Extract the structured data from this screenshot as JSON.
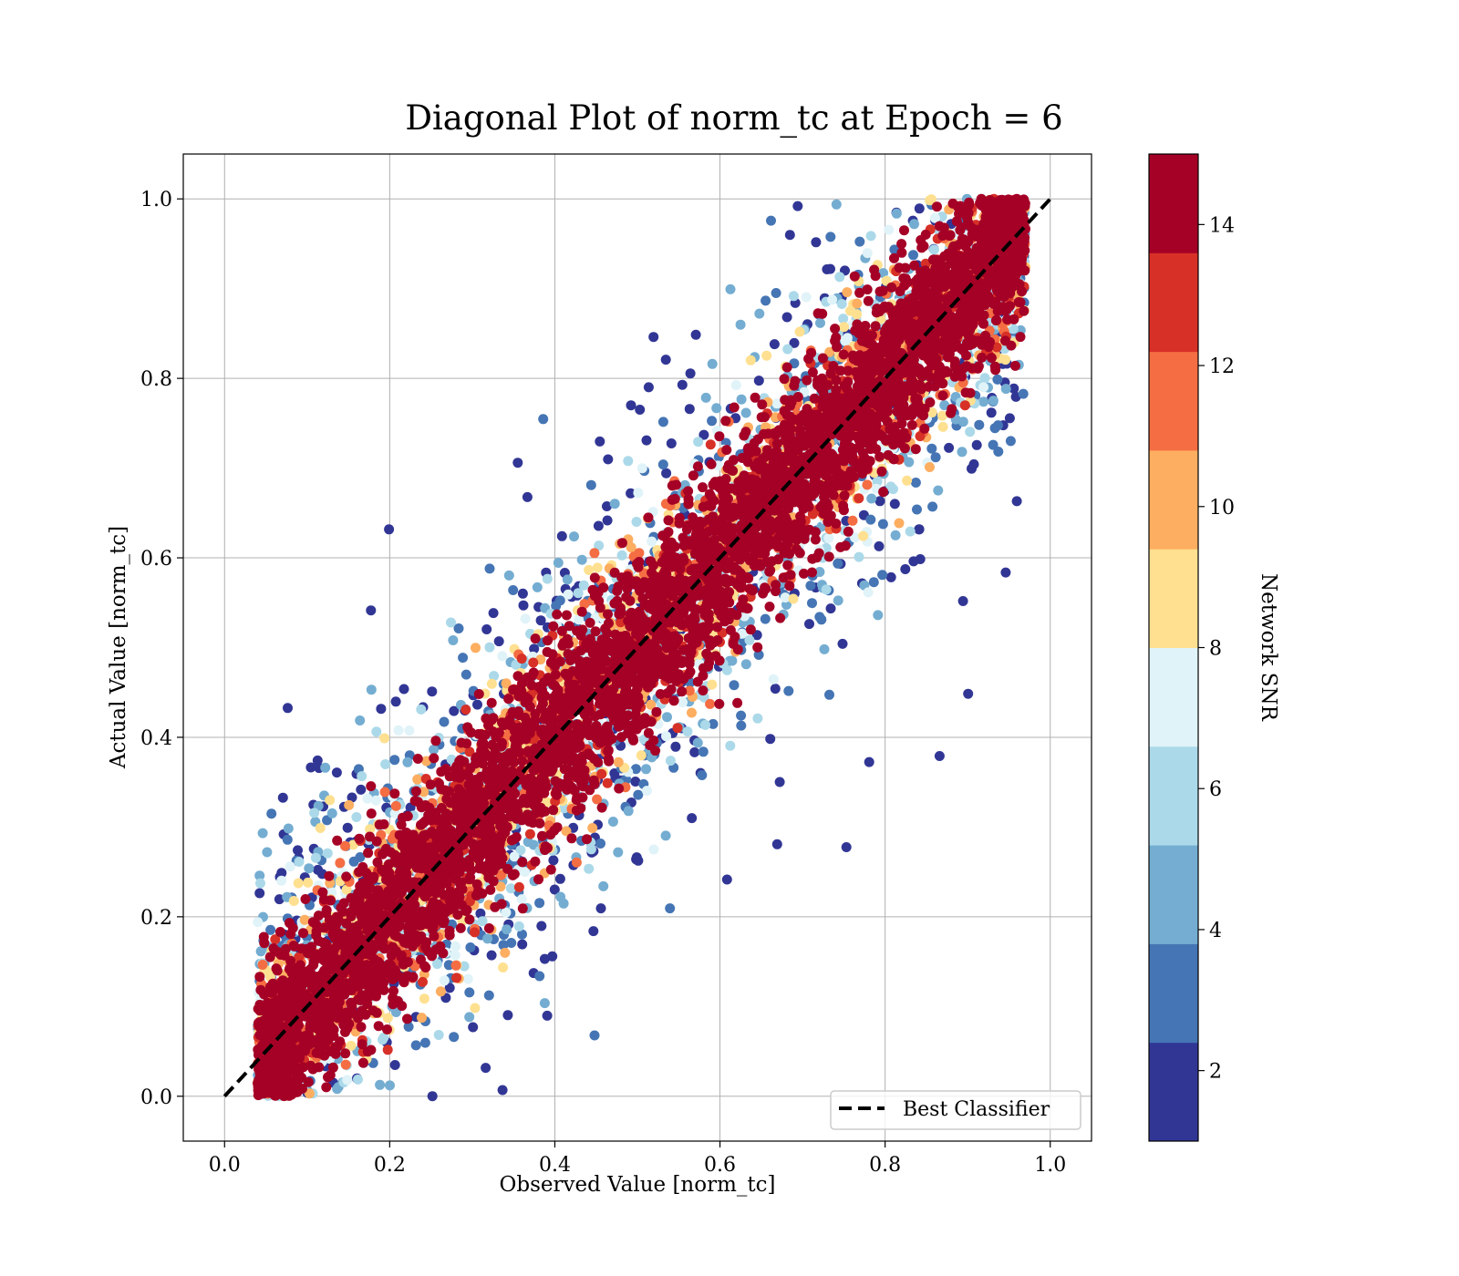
{
  "chart_data": {
    "type": "scatter",
    "title": "Diagonal Plot of norm_tc at Epoch = 6",
    "xlabel": "Observed Value [norm_tc]",
    "ylabel": "Actual Value [norm_tc]",
    "xlim": [
      -0.05,
      1.05
    ],
    "ylim": [
      -0.05,
      1.05
    ],
    "xticks": [
      "0.0",
      "0.2",
      "0.4",
      "0.6",
      "0.8",
      "1.0"
    ],
    "yticks": [
      "0.0",
      "0.2",
      "0.4",
      "0.6",
      "0.8",
      "1.0"
    ],
    "grid": true,
    "reference_line": {
      "label": "Best Classifier",
      "x": [
        0,
        1
      ],
      "y": [
        0,
        1
      ],
      "style": "dashed",
      "color": "#000000"
    },
    "legend": {
      "position": "bottom-right",
      "entries": [
        "Best Classifier"
      ]
    },
    "colorbar": {
      "label": "Network SNR",
      "range": [
        1,
        15
      ],
      "ticks": [
        "2",
        "4",
        "6",
        "8",
        "10",
        "12",
        "14"
      ],
      "levels": 10,
      "colors": [
        "#313695",
        "#4575b4",
        "#74add1",
        "#abd9e9",
        "#e0f3f8",
        "#fee090",
        "#fdae61",
        "#f46d43",
        "#d73027",
        "#a50026"
      ],
      "cmap": "RdYlBu_r"
    },
    "series": [
      {
        "description_points": "Dense cloud of points along diagonal; high-SNR (dark red) points hug the y = x line, low-SNR (blue) points spread farther away.",
        "sample_points_x": [
          0.05,
          0.1,
          0.2,
          0.3,
          0.4,
          0.5,
          0.6,
          0.7,
          0.8,
          0.9,
          0.95
        ],
        "sample_points_y": [
          0.05,
          0.1,
          0.2,
          0.3,
          0.4,
          0.5,
          0.6,
          0.7,
          0.8,
          0.9,
          0.97
        ],
        "color_value": 14
      }
    ]
  }
}
